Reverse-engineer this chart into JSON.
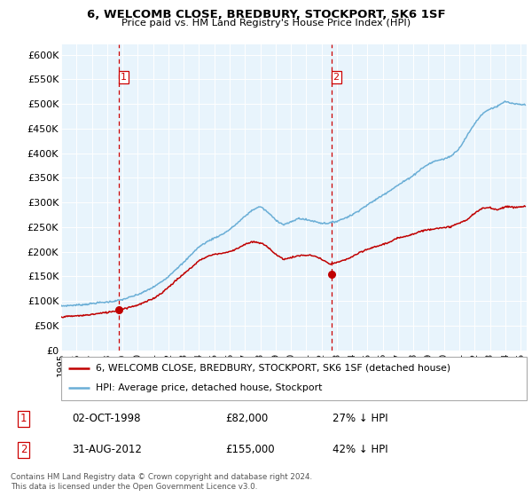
{
  "title": "6, WELCOMB CLOSE, BREDBURY, STOCKPORT, SK6 1SF",
  "subtitle": "Price paid vs. HM Land Registry's House Price Index (HPI)",
  "ylim": [
    0,
    620000
  ],
  "yticks": [
    0,
    50000,
    100000,
    150000,
    200000,
    250000,
    300000,
    350000,
    400000,
    450000,
    500000,
    550000,
    600000
  ],
  "ytick_labels": [
    "£0",
    "£50K",
    "£100K",
    "£150K",
    "£200K",
    "£250K",
    "£300K",
    "£350K",
    "£400K",
    "£450K",
    "£500K",
    "£550K",
    "£600K"
  ],
  "hpi_color": "#6aaed6",
  "price_color": "#c00000",
  "vline_color": "#cc0000",
  "point1_date": 1998.78,
  "point1_price": 82000,
  "point2_date": 2012.66,
  "point2_price": 155000,
  "legend_label1": "6, WELCOMB CLOSE, BREDBURY, STOCKPORT, SK6 1SF (detached house)",
  "legend_label2": "HPI: Average price, detached house, Stockport",
  "table_row1": [
    "1",
    "02-OCT-1998",
    "£82,000",
    "27% ↓ HPI"
  ],
  "table_row2": [
    "2",
    "31-AUG-2012",
    "£155,000",
    "42% ↓ HPI"
  ],
  "footer": "Contains HM Land Registry data © Crown copyright and database right 2024.\nThis data is licensed under the Open Government Licence v3.0.",
  "xmin": 1995.0,
  "xmax": 2025.4,
  "hpi_years": [
    1995.0,
    1995.5,
    1996.0,
    1996.5,
    1997.0,
    1997.5,
    1998.0,
    1998.5,
    1999.0,
    1999.5,
    2000.0,
    2000.5,
    2001.0,
    2001.5,
    2002.0,
    2002.5,
    2003.0,
    2003.5,
    2004.0,
    2004.5,
    2005.0,
    2005.5,
    2006.0,
    2006.5,
    2007.0,
    2007.5,
    2008.0,
    2008.5,
    2009.0,
    2009.5,
    2010.0,
    2010.5,
    2011.0,
    2011.5,
    2012.0,
    2012.5,
    2013.0,
    2013.5,
    2014.0,
    2014.5,
    2015.0,
    2015.5,
    2016.0,
    2016.5,
    2017.0,
    2017.5,
    2018.0,
    2018.5,
    2019.0,
    2019.5,
    2020.0,
    2020.5,
    2021.0,
    2021.5,
    2022.0,
    2022.5,
    2023.0,
    2023.5,
    2024.0,
    2024.5,
    2025.3
  ],
  "hpi_prices": [
    90000,
    91000,
    92000,
    93000,
    95000,
    97000,
    98000,
    100000,
    103000,
    108000,
    113000,
    120000,
    128000,
    138000,
    150000,
    165000,
    178000,
    195000,
    210000,
    220000,
    228000,
    235000,
    245000,
    258000,
    272000,
    285000,
    292000,
    280000,
    265000,
    255000,
    260000,
    268000,
    265000,
    262000,
    258000,
    258000,
    262000,
    268000,
    275000,
    285000,
    295000,
    305000,
    315000,
    325000,
    335000,
    345000,
    355000,
    368000,
    378000,
    385000,
    388000,
    395000,
    410000,
    435000,
    460000,
    480000,
    490000,
    495000,
    505000,
    500000,
    498000
  ],
  "price_years": [
    1995.0,
    1995.5,
    1996.0,
    1996.5,
    1997.0,
    1997.5,
    1998.0,
    1998.5,
    1999.0,
    1999.5,
    2000.0,
    2000.5,
    2001.0,
    2001.5,
    2002.0,
    2002.5,
    2003.0,
    2003.5,
    2004.0,
    2004.5,
    2005.0,
    2005.5,
    2006.0,
    2006.5,
    2007.0,
    2007.5,
    2008.0,
    2008.5,
    2009.0,
    2009.5,
    2010.0,
    2010.5,
    2011.0,
    2011.5,
    2012.0,
    2012.5,
    2013.0,
    2013.5,
    2014.0,
    2014.5,
    2015.0,
    2015.5,
    2016.0,
    2016.5,
    2017.0,
    2017.5,
    2018.0,
    2018.5,
    2019.0,
    2019.5,
    2020.0,
    2020.5,
    2021.0,
    2021.5,
    2022.0,
    2022.5,
    2023.0,
    2023.5,
    2024.0,
    2024.5,
    2025.3
  ],
  "price_prices": [
    68000,
    69000,
    70000,
    71000,
    73000,
    75000,
    77000,
    80000,
    84000,
    88000,
    92000,
    98000,
    105000,
    115000,
    128000,
    142000,
    155000,
    168000,
    182000,
    190000,
    195000,
    197000,
    200000,
    207000,
    215000,
    220000,
    218000,
    210000,
    195000,
    185000,
    188000,
    192000,
    193000,
    192000,
    185000,
    175000,
    178000,
    183000,
    190000,
    198000,
    205000,
    210000,
    215000,
    220000,
    228000,
    232000,
    236000,
    242000,
    245000,
    248000,
    248000,
    252000,
    258000,
    265000,
    278000,
    288000,
    290000,
    285000,
    292000,
    290000,
    292000
  ]
}
